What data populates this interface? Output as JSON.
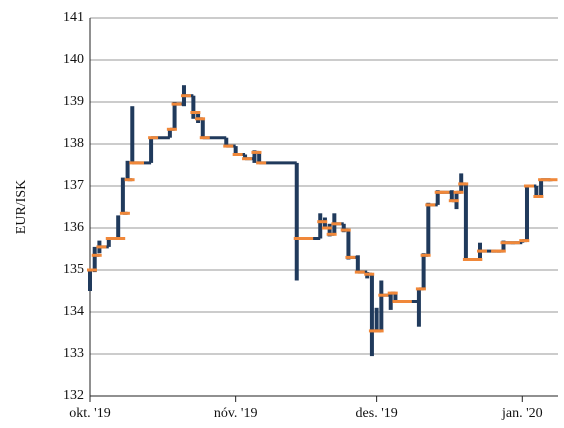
{
  "chart_data": {
    "type": "hlc",
    "y_label": "EUR/ISK",
    "x": [
      0,
      1,
      2,
      4,
      6,
      7,
      8,
      9,
      10,
      13,
      17,
      18,
      20,
      22,
      23,
      24,
      29,
      31,
      33,
      35,
      36,
      44,
      46,
      49,
      50,
      51,
      52,
      54,
      55,
      57,
      59,
      60,
      61,
      62,
      64,
      65,
      67,
      70,
      71,
      72,
      74,
      75,
      77,
      78,
      79,
      80,
      82,
      83,
      86,
      87,
      88,
      90,
      92,
      93,
      95,
      96,
      98
    ],
    "high": [
      135.0,
      135.55,
      135.7,
      135.75,
      136.3,
      137.2,
      137.6,
      138.9,
      137.55,
      138.15,
      138.35,
      139.0,
      139.4,
      139.15,
      138.75,
      138.6,
      138.15,
      137.95,
      137.75,
      137.85,
      137.8,
      137.55,
      135.75,
      136.35,
      136.25,
      136.1,
      136.35,
      136.1,
      135.95,
      135.35,
      134.95,
      134.9,
      134.1,
      134.75,
      134.45,
      134.45,
      134.25,
      134.55,
      135.4,
      136.6,
      136.9,
      136.85,
      136.9,
      136.85,
      137.3,
      137.05,
      135.25,
      135.65,
      135.45,
      135.45,
      135.7,
      135.65,
      135.7,
      137.0,
      137.0,
      137.15,
      137.15
    ],
    "low": [
      134.5,
      134.95,
      135.4,
      135.55,
      135.75,
      136.35,
      137.15,
      137.55,
      137.55,
      137.55,
      138.15,
      138.35,
      138.9,
      138.6,
      138.5,
      138.15,
      137.95,
      137.75,
      137.65,
      137.55,
      137.55,
      134.75,
      135.75,
      135.75,
      136.0,
      135.8,
      135.85,
      135.9,
      135.25,
      134.95,
      134.8,
      132.95,
      133.55,
      133.55,
      134.05,
      134.25,
      134.25,
      133.65,
      134.55,
      135.35,
      136.55,
      136.85,
      136.65,
      136.45,
      136.85,
      135.25,
      135.25,
      135.25,
      135.45,
      135.45,
      135.45,
      135.65,
      135.65,
      135.7,
      136.75,
      136.75,
      137.15
    ],
    "close": [
      135.0,
      135.35,
      135.55,
      135.75,
      135.75,
      136.35,
      137.15,
      137.55,
      137.55,
      138.15,
      138.35,
      138.95,
      139.15,
      138.75,
      138.6,
      138.15,
      137.95,
      137.75,
      137.65,
      137.8,
      137.55,
      135.75,
      135.75,
      136.15,
      136.0,
      135.85,
      136.1,
      135.95,
      135.3,
      134.95,
      134.9,
      133.55,
      133.55,
      134.4,
      134.45,
      134.25,
      134.25,
      134.55,
      135.35,
      136.55,
      136.85,
      136.85,
      136.65,
      136.85,
      137.05,
      135.25,
      135.25,
      135.45,
      135.45,
      135.45,
      135.65,
      135.65,
      135.7,
      137.0,
      136.75,
      137.15,
      137.15
    ],
    "range_color": "#203a5c",
    "close_color": "#f0883a",
    "xlim": [
      0,
      99.6
    ],
    "xticks": [
      {
        "value": 0,
        "label": "okt. '19"
      },
      {
        "value": 31,
        "label": "nóv. '19"
      },
      {
        "value": 61,
        "label": "des. '19"
      },
      {
        "value": 92,
        "label": "jan. '20"
      }
    ],
    "ylim": [
      132,
      141
    ],
    "yticks": [
      132,
      133,
      134,
      135,
      136,
      137,
      138,
      139,
      140,
      141
    ],
    "grid": true
  }
}
